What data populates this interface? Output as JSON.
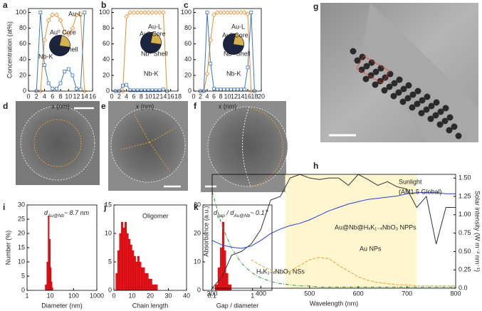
{
  "chart_data": [
    {
      "type": "line",
      "panel": "a",
      "xlabel": "x (nm)",
      "ylabel": "Concentration (at%)",
      "xlim": [
        0,
        16
      ],
      "xticks": [
        0,
        2,
        4,
        6,
        8,
        10,
        12,
        14,
        16
      ],
      "ylim": [
        0,
        105
      ],
      "yticks": [
        0,
        20,
        40,
        60,
        80,
        100
      ],
      "x": [
        2,
        3,
        4,
        5,
        6,
        7,
        8,
        9,
        10,
        11,
        12,
        13,
        14
      ],
      "series": [
        {
          "name": "Au-L",
          "color": "#f28c28",
          "marker": "diamond",
          "values": [
            0,
            0,
            65,
            90,
            97,
            97,
            90,
            75,
            72,
            80,
            97,
            98,
            0
          ]
        },
        {
          "name": "Nb-K",
          "color": "#3a78c2",
          "marker": "square",
          "values": [
            0,
            100,
            33,
            10,
            3,
            3,
            10,
            25,
            28,
            20,
            3,
            2,
            100
          ]
        }
      ],
      "annotations": [
        "Au⁰ Core",
        "Nb⁰ Shell"
      ]
    },
    {
      "type": "line",
      "panel": "b",
      "xlabel": "x (nm)",
      "xlim": [
        0,
        18
      ],
      "xticks": [
        0,
        2,
        4,
        6,
        8,
        10,
        12,
        14,
        16,
        18
      ],
      "ylim": [
        0,
        105
      ],
      "yticks": [
        0,
        20,
        40,
        60,
        80,
        100
      ],
      "x": [
        1,
        2,
        3,
        4,
        5,
        6,
        7,
        8,
        9,
        10,
        11,
        12,
        13,
        14,
        15
      ],
      "series": [
        {
          "name": "Au-L",
          "color": "#f28c28",
          "marker": "diamond",
          "values": [
            0,
            0,
            0,
            95,
            100,
            100,
            100,
            100,
            100,
            100,
            100,
            100,
            100,
            100,
            0
          ]
        },
        {
          "name": "Nb-K",
          "color": "#3a78c2",
          "marker": "square",
          "values": [
            0,
            0,
            7,
            8,
            1,
            1,
            1,
            1,
            1,
            1,
            1,
            1,
            1,
            2,
            0
          ]
        }
      ],
      "annotations": [
        "Au⁰ Core",
        "Nb⁰ Shell"
      ]
    },
    {
      "type": "line",
      "panel": "c",
      "xlabel": "x (nm)",
      "xlim": [
        0,
        20
      ],
      "xticks": [
        0,
        2,
        4,
        6,
        8,
        10,
        12,
        14,
        16,
        18,
        20
      ],
      "ylim": [
        0,
        105
      ],
      "yticks": [
        0,
        20,
        40,
        60,
        80,
        100
      ],
      "x": [
        2,
        3,
        4,
        5,
        6,
        7,
        8,
        9,
        10,
        11,
        12,
        13,
        14,
        15,
        16,
        17,
        18
      ],
      "series": [
        {
          "name": "Au-L",
          "color": "#f28c28",
          "marker": "diamond",
          "values": [
            0,
            0,
            22,
            65,
            97,
            100,
            100,
            100,
            100,
            100,
            100,
            100,
            100,
            100,
            98,
            0,
            0
          ]
        },
        {
          "name": "Nb-K",
          "color": "#3a78c2",
          "marker": "square",
          "values": [
            0,
            0,
            100,
            35,
            3,
            2,
            2,
            2,
            2,
            2,
            2,
            2,
            2,
            2,
            30,
            100,
            0
          ]
        }
      ],
      "annotations": [
        "Au⁰ Core",
        "Nb⁰ Shell"
      ]
    },
    {
      "type": "histogram",
      "panel": "i",
      "xlabel": "Diameter (nm)",
      "ylabel": "Number (%)",
      "log_x": true,
      "color": "#e8141b",
      "xlim": [
        1,
        1000
      ],
      "xticks": [
        1,
        10,
        100,
        1000
      ],
      "ylim": [
        0,
        30
      ],
      "yticks": [
        0,
        5,
        10,
        15,
        20,
        25,
        30
      ],
      "bins": [
        6,
        7,
        8,
        9,
        10,
        11,
        12,
        13
      ],
      "counts": [
        2,
        10,
        26,
        18,
        8,
        3,
        1
      ],
      "annotations": [
        [
          {
            "text": "d"
          },
          {
            "text": "Au@Nb",
            "sub": true
          },
          {
            "text": "~ 8.7 nm"
          }
        ]
      ]
    },
    {
      "type": "histogram",
      "panel": "j",
      "xlabel": "Chain length",
      "color": "#e8141b",
      "xlim": [
        0,
        40
      ],
      "xticks": [
        0,
        10,
        20,
        30,
        40
      ],
      "ylim": [
        0,
        15
      ],
      "yticks": [
        0,
        5,
        10,
        15
      ],
      "bins": [
        1,
        2,
        3,
        4,
        5,
        6,
        7,
        8,
        9,
        10,
        11,
        12,
        13,
        14,
        15,
        16,
        17,
        18,
        19,
        20,
        21,
        22,
        23,
        24
      ],
      "counts": [
        3,
        7,
        10,
        12,
        11,
        12,
        10,
        9,
        8,
        7,
        6,
        5,
        6,
        5,
        4,
        4,
        3,
        3,
        2,
        2,
        1,
        1,
        1
      ],
      "annotations": [
        "Oligomer"
      ]
    },
    {
      "type": "histogram",
      "panel": "k",
      "xlabel": "Gap / diameter",
      "log_x": true,
      "color": "#e8141b",
      "xlim": [
        0.06,
        3
      ],
      "xticks": [
        0.1,
        1
      ],
      "ylim": [
        0,
        30
      ],
      "yticks": [
        0,
        10,
        20,
        30
      ],
      "bins": [
        0.12,
        0.14,
        0.16,
        0.18,
        0.2,
        0.22,
        0.25,
        0.3
      ],
      "counts": [
        2,
        8,
        15,
        24,
        14,
        6,
        2
      ],
      "annotations": [
        [
          {
            "text": "d"
          },
          {
            "text": "gap",
            "sub": true
          },
          {
            "text": " / d"
          },
          {
            "text": "Au@Nb",
            "sub": true
          },
          {
            "text": "~ 0.17"
          }
        ]
      ]
    },
    {
      "type": "line",
      "panel": "h",
      "xlabel": "Wavelength (nm)",
      "ylabel": "Absorbance (a.u.)",
      "y2label": "Solar intensity (W m⁻² nm⁻¹)",
      "xlim": [
        300,
        800
      ],
      "xticks": [
        300,
        400,
        500,
        600,
        700,
        800
      ],
      "ylim": [
        0,
        1
      ],
      "y2lim": [
        0,
        1.55
      ],
      "y2ticks": [
        {
          "value": 0,
          "label": "0.0"
        },
        0.25,
        {
          "value": 0.5,
          "label": "0.50"
        },
        0.75,
        {
          "value": 1,
          "label": "1.00"
        },
        1.25,
        {
          "value": 1.5,
          "label": "1.50"
        }
      ],
      "highlight_x": [
        450,
        720
      ],
      "x": [
        300,
        320,
        340,
        360,
        380,
        400,
        420,
        440,
        460,
        480,
        500,
        520,
        540,
        560,
        580,
        600,
        620,
        640,
        660,
        680,
        700,
        720,
        740,
        760,
        780,
        800
      ],
      "series": [
        {
          "name": "Sunlight",
          "axis": "y2",
          "color": "#333333",
          "values": [
            0,
            0.15,
            0.45,
            0.5,
            0.6,
            0.8,
            1.2,
            1.25,
            1.5,
            1.55,
            1.5,
            1.48,
            1.5,
            1.5,
            1.4,
            1.55,
            1.48,
            1.4,
            1.45,
            1.38,
            1.35,
            1.1,
            1.25,
            0.6,
            1.1,
            1.1
          ]
        },
        {
          "name": "Au@Nb@HₓK₁₋ₓNbO₃ NPPs",
          "color": "#2a3fd6",
          "values": [
            0.42,
            0.38,
            0.36,
            0.35,
            0.37,
            0.42,
            0.48,
            0.52,
            0.55,
            0.57,
            0.6,
            0.64,
            0.68,
            0.71,
            0.74,
            0.76,
            0.78,
            0.79,
            0.8,
            0.81,
            0.83,
            0.84,
            0.84,
            0.84,
            0.83,
            0.83
          ]
        },
        {
          "name": "Au NPs",
          "color": "#f0a030",
          "dash": "4 2",
          "values": [
            null,
            null,
            null,
            null,
            0.25,
            0.2,
            0.16,
            0.13,
            0.15,
            0.2,
            0.25,
            0.27,
            0.26,
            0.2,
            0.15,
            0.1,
            0.07,
            0.05,
            0.04,
            0.03,
            0.03,
            0.02,
            0.02,
            0.02,
            0.02,
            0.02
          ]
        },
        {
          "name": "HₓK₁₋ₓNbO₃ NSs",
          "color": "#2e9a3a",
          "dash": "5 2 1 2",
          "values": [
            0.85,
            0.55,
            0.35,
            0.22,
            0.14,
            0.09,
            0.06,
            0.04,
            0.03,
            0.02,
            0.02,
            0.01,
            0.01,
            0.01,
            0.01,
            0.01,
            0.01,
            0.01,
            0.01,
            0.01,
            0.01,
            0.01,
            0.01,
            0.01,
            0.01,
            0.01
          ]
        }
      ],
      "annotations": [
        "(AM1.5 Global)"
      ]
    }
  ],
  "images": [
    {
      "panel": "d"
    },
    {
      "panel": "e"
    },
    {
      "panel": "f"
    },
    {
      "panel": "g"
    }
  ]
}
